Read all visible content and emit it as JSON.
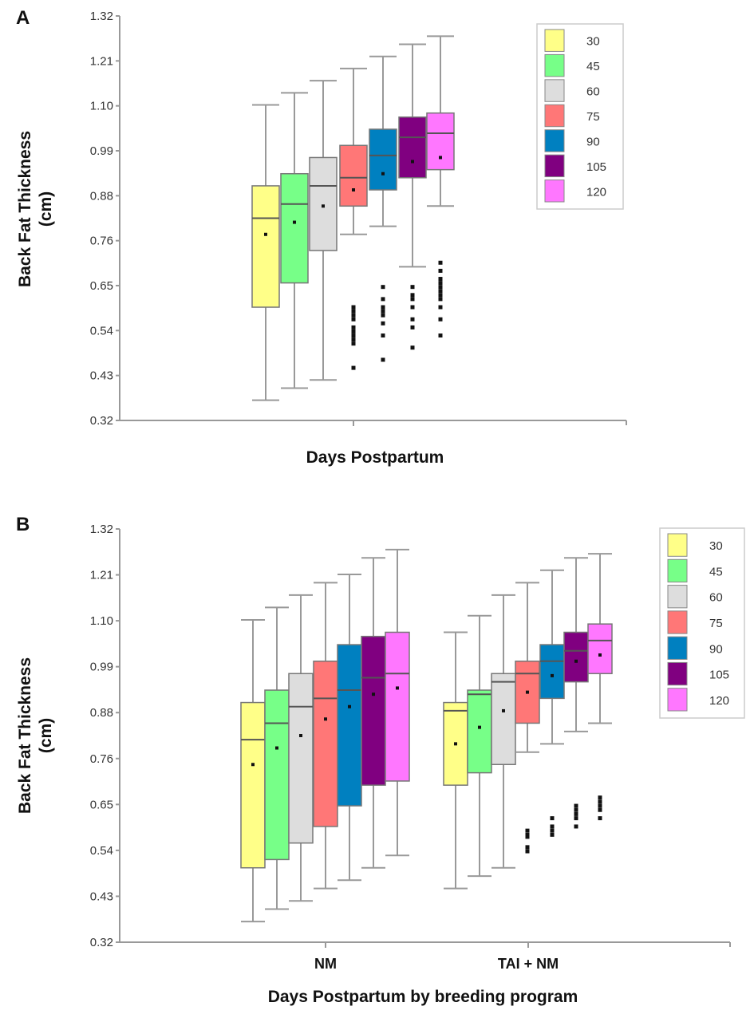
{
  "chart_data": [
    {
      "type": "box",
      "panel_label": "A",
      "ylabel": [
        "Back Fat Thickness",
        "(cm)"
      ],
      "xlabel": "Days Postpartum",
      "ylim": [
        0.32,
        1.32
      ],
      "yticks": [
        "0.32",
        "0.43",
        "0.54",
        "0.65",
        "0.76",
        "0.88",
        "0.99",
        "1.10",
        "1.21",
        "1.32"
      ],
      "legend": {
        "placement": "top-right",
        "entries": [
          "30",
          "45",
          "60",
          "75",
          "90",
          "105",
          "120"
        ]
      },
      "groups": [
        {
          "label": "",
          "boxes": [
            {
              "series": "30",
              "whisker_low": 0.37,
              "q1": 0.6,
              "median": 0.82,
              "mean": 0.78,
              "q3": 0.9,
              "whisker_high": 1.1,
              "outliers": []
            },
            {
              "series": "45",
              "whisker_low": 0.4,
              "q1": 0.66,
              "median": 0.855,
              "mean": 0.81,
              "q3": 0.93,
              "whisker_high": 1.13,
              "outliers": []
            },
            {
              "series": "60",
              "whisker_low": 0.42,
              "q1": 0.74,
              "median": 0.9,
              "mean": 0.85,
              "q3": 0.97,
              "whisker_high": 1.16,
              "outliers": []
            },
            {
              "series": "75",
              "whisker_low": 0.78,
              "q1": 0.85,
              "median": 0.92,
              "mean": 0.89,
              "q3": 1.0,
              "whisker_high": 1.19,
              "outliers": [
                0.6,
                0.59,
                0.58,
                0.57,
                0.55,
                0.54,
                0.53,
                0.52,
                0.51,
                0.45
              ]
            },
            {
              "series": "90",
              "whisker_low": 0.8,
              "q1": 0.89,
              "median": 0.975,
              "mean": 0.93,
              "q3": 1.04,
              "whisker_high": 1.22,
              "outliers": [
                0.65,
                0.62,
                0.6,
                0.59,
                0.58,
                0.56,
                0.53,
                0.47
              ]
            },
            {
              "series": "105",
              "whisker_low": 0.7,
              "q1": 0.92,
              "median": 1.02,
              "mean": 0.96,
              "q3": 1.07,
              "whisker_high": 1.25,
              "outliers": [
                0.65,
                0.63,
                0.62,
                0.6,
                0.57,
                0.55,
                0.5
              ]
            },
            {
              "series": "120",
              "whisker_low": 0.85,
              "q1": 0.94,
              "median": 1.03,
              "mean": 0.97,
              "q3": 1.08,
              "whisker_high": 1.27,
              "outliers": [
                0.71,
                0.69,
                0.67,
                0.66,
                0.65,
                0.64,
                0.63,
                0.62,
                0.6,
                0.57,
                0.53
              ]
            }
          ]
        }
      ]
    },
    {
      "type": "box",
      "panel_label": "B",
      "ylabel": [
        "Back Fat Thickness",
        "(cm)"
      ],
      "xlabel": "Days Postpartum by breeding program",
      "ylim": [
        0.32,
        1.32
      ],
      "yticks": [
        "0.32",
        "0.43",
        "0.54",
        "0.65",
        "0.76",
        "0.88",
        "0.99",
        "1.10",
        "1.21",
        "1.32"
      ],
      "legend": {
        "placement": "top-right",
        "entries": [
          "30",
          "45",
          "60",
          "75",
          "90",
          "105",
          "120"
        ]
      },
      "groups": [
        {
          "label": "NM",
          "boxes": [
            {
              "series": "30",
              "whisker_low": 0.37,
              "q1": 0.5,
              "median": 0.81,
              "mean": 0.75,
              "q3": 0.9,
              "whisker_high": 1.1,
              "outliers": []
            },
            {
              "series": "45",
              "whisker_low": 0.4,
              "q1": 0.52,
              "median": 0.85,
              "mean": 0.79,
              "q3": 0.93,
              "whisker_high": 1.13,
              "outliers": []
            },
            {
              "series": "60",
              "whisker_low": 0.42,
              "q1": 0.56,
              "median": 0.89,
              "mean": 0.82,
              "q3": 0.97,
              "whisker_high": 1.16,
              "outliers": []
            },
            {
              "series": "75",
              "whisker_low": 0.45,
              "q1": 0.6,
              "median": 0.91,
              "mean": 0.86,
              "q3": 1.0,
              "whisker_high": 1.19,
              "outliers": []
            },
            {
              "series": "90",
              "whisker_low": 0.47,
              "q1": 0.65,
              "median": 0.93,
              "mean": 0.89,
              "q3": 1.04,
              "whisker_high": 1.21,
              "outliers": []
            },
            {
              "series": "105",
              "whisker_low": 0.5,
              "q1": 0.7,
              "median": 0.96,
              "mean": 0.92,
              "q3": 1.06,
              "whisker_high": 1.25,
              "outliers": []
            },
            {
              "series": "120",
              "whisker_low": 0.53,
              "q1": 0.71,
              "median": 0.97,
              "mean": 0.935,
              "q3": 1.07,
              "whisker_high": 1.27,
              "outliers": []
            }
          ]
        },
        {
          "label": "TAI + NM",
          "boxes": [
            {
              "series": "30",
              "whisker_low": 0.45,
              "q1": 0.7,
              "median": 0.88,
              "mean": 0.8,
              "q3": 0.9,
              "whisker_high": 1.07,
              "outliers": []
            },
            {
              "series": "45",
              "whisker_low": 0.48,
              "q1": 0.73,
              "median": 0.92,
              "mean": 0.84,
              "q3": 0.93,
              "whisker_high": 1.11,
              "outliers": []
            },
            {
              "series": "60",
              "whisker_low": 0.5,
              "q1": 0.75,
              "median": 0.95,
              "mean": 0.88,
              "q3": 0.97,
              "whisker_high": 1.16,
              "outliers": []
            },
            {
              "series": "75",
              "whisker_low": 0.78,
              "q1": 0.85,
              "median": 0.97,
              "mean": 0.925,
              "q3": 1.0,
              "whisker_high": 1.19,
              "outliers": [
                0.59,
                0.58,
                0.575,
                0.55,
                0.54
              ]
            },
            {
              "series": "90",
              "whisker_low": 0.8,
              "q1": 0.91,
              "median": 1.0,
              "mean": 0.965,
              "q3": 1.04,
              "whisker_high": 1.22,
              "outliers": [
                0.62,
                0.6,
                0.59,
                0.58
              ]
            },
            {
              "series": "105",
              "whisker_low": 0.83,
              "q1": 0.95,
              "median": 1.025,
              "mean": 1.0,
              "q3": 1.07,
              "whisker_high": 1.25,
              "outliers": [
                0.65,
                0.64,
                0.63,
                0.62,
                0.6
              ]
            },
            {
              "series": "120",
              "whisker_low": 0.85,
              "q1": 0.97,
              "median": 1.05,
              "mean": 1.015,
              "q3": 1.09,
              "whisker_high": 1.26,
              "outliers": [
                0.67,
                0.66,
                0.65,
                0.64,
                0.62
              ]
            }
          ]
        }
      ]
    }
  ],
  "colors": {
    "30": "#ffff88",
    "45": "#77ff88",
    "60": "#dddddd",
    "75": "#ff7777",
    "90": "#0080c0",
    "105": "#800080",
    "120": "#ff77ff"
  }
}
